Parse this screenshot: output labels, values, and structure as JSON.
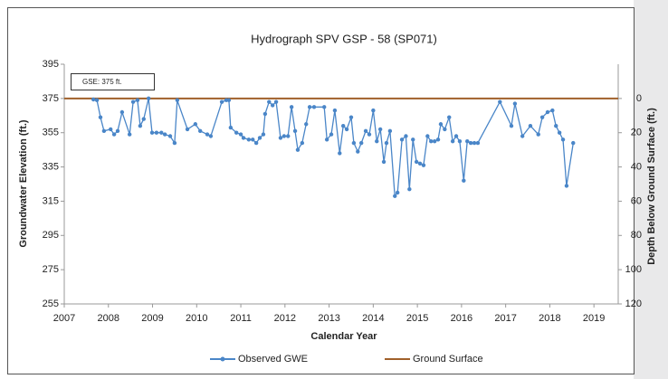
{
  "chart_data": {
    "type": "line",
    "title": "Hydrograph SPV GSP - 58 (SP071)",
    "x_label": "Calendar Year",
    "y_label": "Groundwater Elevation (ft.)",
    "y2_label": "Depth Below Ground Surface  (ft.)",
    "annotation": "GSE:  375  ft.",
    "xlim": [
      2007,
      2019.55
    ],
    "xticks": [
      2007,
      2008,
      2009,
      2010,
      2011,
      2012,
      2013,
      2014,
      2015,
      2016,
      2017,
      2018,
      2019
    ],
    "ylim": [
      255,
      395
    ],
    "yticks": [
      255,
      275,
      295,
      315,
      335,
      355,
      375,
      395
    ],
    "y2lim": [
      120,
      -20
    ],
    "y2ticks": [
      0,
      20,
      40,
      60,
      80,
      100,
      120
    ],
    "grid": false,
    "legend": "bottom",
    "series": [
      {
        "name": "Observed GWE",
        "color": "#4a86c8",
        "marker": true,
        "x": [
          2007.66,
          2007.74,
          2007.82,
          2007.9,
          2008.05,
          2008.13,
          2008.21,
          2008.31,
          2008.48,
          2008.56,
          2008.66,
          2008.72,
          2008.8,
          2008.91,
          2008.99,
          2009.09,
          2009.2,
          2009.28,
          2009.4,
          2009.5,
          2009.56,
          2009.79,
          2009.97,
          2010.08,
          2010.24,
          2010.32,
          2010.57,
          2010.67,
          2010.73,
          2010.77,
          2010.9,
          2011.0,
          2011.06,
          2011.18,
          2011.27,
          2011.35,
          2011.43,
          2011.51,
          2011.55,
          2011.64,
          2011.72,
          2011.8,
          2011.9,
          2011.98,
          2012.07,
          2012.15,
          2012.23,
          2012.29,
          2012.39,
          2012.48,
          2012.56,
          2012.66,
          2012.89,
          2012.95,
          2013.05,
          2013.13,
          2013.24,
          2013.32,
          2013.4,
          2013.5,
          2013.56,
          2013.65,
          2013.73,
          2013.83,
          2013.91,
          2014.0,
          2014.08,
          2014.16,
          2014.24,
          2014.3,
          2014.38,
          2014.49,
          2014.55,
          2014.65,
          2014.74,
          2014.82,
          2014.9,
          2014.98,
          2015.06,
          2015.14,
          2015.23,
          2015.31,
          2015.39,
          2015.47,
          2015.53,
          2015.62,
          2015.72,
          2015.8,
          2015.88,
          2015.96,
          2016.05,
          2016.13,
          2016.21,
          2016.29,
          2016.37,
          2016.87,
          2017.13,
          2017.21,
          2017.38,
          2017.56,
          2017.74,
          2017.83,
          2017.95,
          2018.06,
          2018.14,
          2018.22,
          2018.3,
          2018.38,
          2018.53
        ],
        "values": [
          374.4,
          374,
          364,
          356,
          357,
          354,
          356,
          367,
          354,
          373,
          374,
          359,
          363,
          375,
          355,
          355,
          355,
          354,
          353,
          349,
          374,
          357,
          360,
          356,
          354,
          353,
          373,
          374,
          374,
          358,
          355,
          354,
          352,
          351,
          351,
          349,
          352,
          354,
          366,
          373,
          371,
          373,
          352,
          353,
          353,
          370,
          356,
          345,
          349,
          360,
          370,
          370,
          370,
          351,
          354,
          368,
          343,
          359,
          357,
          364,
          349,
          344,
          349,
          356,
          354,
          368,
          350,
          357,
          338,
          349,
          356,
          318,
          320,
          351,
          353,
          322,
          351,
          338,
          337,
          336,
          353,
          350,
          350,
          351,
          360,
          357,
          364,
          350,
          353,
          350,
          327,
          350,
          349,
          349,
          349,
          373,
          359,
          372,
          353,
          359,
          354,
          364,
          367,
          368,
          359,
          355,
          351,
          324,
          349
        ]
      },
      {
        "name": "Ground Surface",
        "color": "#a0602a",
        "marker": false,
        "x": [
          2007,
          2019.55
        ],
        "values": [
          375,
          375
        ]
      }
    ]
  }
}
